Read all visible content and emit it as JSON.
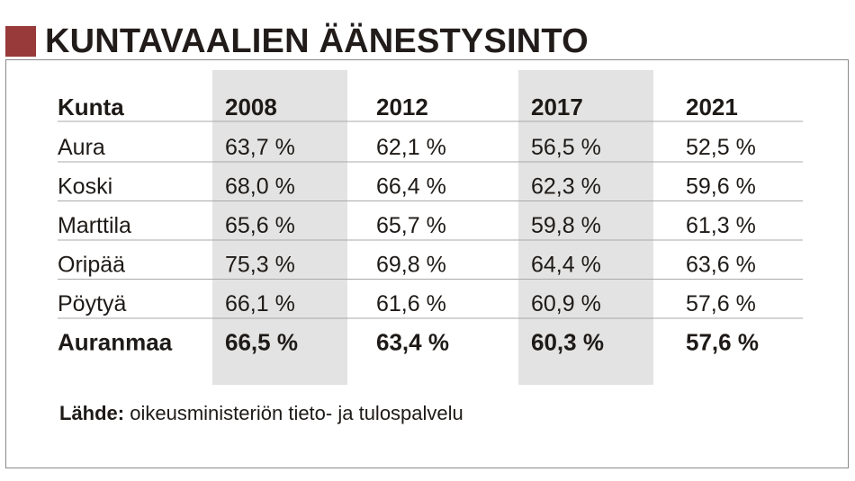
{
  "title": "KUNTAVAALIEN ÄÄNESTYSINTO",
  "colors": {
    "accent": "#98393a",
    "shade": "#e3e3e3",
    "text": "#1e1a17",
    "rule": "#a9a9a9"
  },
  "chart_data": {
    "type": "table",
    "title": "KUNTAVAALIEN ÄÄNESTYSINTO",
    "columns": [
      "Kunta",
      "2008",
      "2012",
      "2017",
      "2021"
    ],
    "shaded_columns": [
      "2008",
      "2017"
    ],
    "rows": [
      {
        "label": "Aura",
        "values": [
          "63,7 %",
          "62,1 %",
          "56,5 %",
          "52,5 %"
        ]
      },
      {
        "label": "Koski",
        "values": [
          "68,0 %",
          "66,4 %",
          "62,3 %",
          "59,6 %"
        ]
      },
      {
        "label": "Marttila",
        "values": [
          "65,6 %",
          "65,7 %",
          "59,8 %",
          "61,3 %"
        ]
      },
      {
        "label": "Oripää",
        "values": [
          "75,3 %",
          "69,8 %",
          "64,4 %",
          "63,6 %"
        ]
      },
      {
        "label": "Pöytyä",
        "values": [
          "66,1 %",
          "61,6 %",
          "60,9 %",
          "57,6 %"
        ]
      }
    ],
    "total": {
      "label": "Auranmaa",
      "values": [
        "66,5 %",
        "63,4 %",
        "60,3 %",
        "57,6 %"
      ]
    },
    "source_label": "Lähde:",
    "source_text": "oikeusministeriön tieto- ja tulospalvelu"
  }
}
